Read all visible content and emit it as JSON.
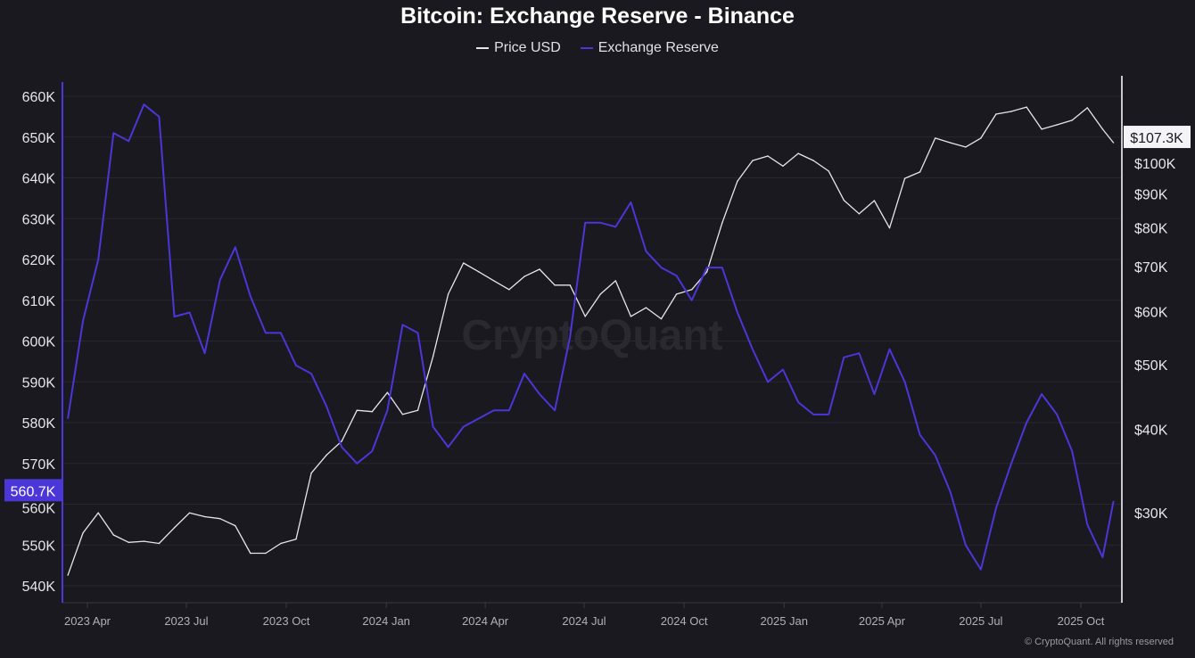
{
  "chart_data": {
    "type": "line",
    "title": "Bitcoin: Exchange Reserve - Binance",
    "legend": [
      "Price USD",
      "Exchange Reserve"
    ],
    "legend_placement": "top-center",
    "grid": true,
    "x_ticks": [
      "2023 Apr",
      "2023 Jul",
      "2023 Oct",
      "2024 Jan",
      "2024 Apr",
      "2024 Jul",
      "2024 Oct",
      "2025 Jan",
      "2025 Apr",
      "2025 Jul",
      "2025 Oct"
    ],
    "x_tick_dates": [
      "2023-04-01",
      "2023-07-01",
      "2023-10-01",
      "2024-01-01",
      "2024-04-01",
      "2024-07-01",
      "2024-10-01",
      "2025-01-01",
      "2025-04-01",
      "2025-07-01",
      "2025-10-01"
    ],
    "left_axis": {
      "ticks": [
        "660K",
        "650K",
        "640K",
        "630K",
        "620K",
        "610K",
        "600K",
        "590K",
        "580K",
        "570K",
        "560K",
        "550K",
        "540K"
      ],
      "tick_values": [
        660,
        650,
        640,
        630,
        620,
        610,
        600,
        590,
        580,
        570,
        560,
        550,
        540
      ],
      "unit": "K BTC",
      "last_value_label": "560.7K"
    },
    "right_axis": {
      "scale": "log",
      "ticks": [
        "$100K",
        "$90K",
        "$80K",
        "$70K",
        "$60K",
        "$50K",
        "$40K",
        "$30K"
      ],
      "tick_values": [
        100,
        90,
        80,
        70,
        60,
        50,
        40,
        30
      ],
      "unit": "K USD",
      "last_value_label": "$107.3K"
    },
    "dates": [
      "2023-03-14",
      "2023-03-28",
      "2023-04-11",
      "2023-04-25",
      "2023-05-09",
      "2023-05-23",
      "2023-06-06",
      "2023-06-20",
      "2023-07-04",
      "2023-07-18",
      "2023-08-01",
      "2023-08-15",
      "2023-08-29",
      "2023-09-12",
      "2023-09-26",
      "2023-10-10",
      "2023-10-24",
      "2023-11-07",
      "2023-11-21",
      "2023-12-05",
      "2023-12-19",
      "2024-01-02",
      "2024-01-16",
      "2024-01-30",
      "2024-02-13",
      "2024-02-27",
      "2024-03-12",
      "2024-03-26",
      "2024-04-09",
      "2024-04-23",
      "2024-05-07",
      "2024-05-21",
      "2024-06-04",
      "2024-06-18",
      "2024-07-02",
      "2024-07-16",
      "2024-07-30",
      "2024-08-13",
      "2024-08-27",
      "2024-09-10",
      "2024-09-24",
      "2024-10-08",
      "2024-10-22",
      "2024-11-05",
      "2024-11-19",
      "2024-12-03",
      "2024-12-17",
      "2024-12-31",
      "2025-01-14",
      "2025-01-28",
      "2025-02-11",
      "2025-02-25",
      "2025-03-11",
      "2025-03-25",
      "2025-04-08",
      "2025-04-22",
      "2025-05-06",
      "2025-05-20",
      "2025-06-03",
      "2025-06-17",
      "2025-07-01",
      "2025-07-15",
      "2025-07-29",
      "2025-08-12",
      "2025-08-26",
      "2025-09-09",
      "2025-09-23",
      "2025-10-07",
      "2025-10-21",
      "2025-10-31"
    ],
    "series": [
      {
        "name": "Price USD",
        "axis": "right",
        "color": "#e6e6ea",
        "values": [
          24.2,
          28.0,
          30.0,
          27.8,
          27.1,
          27.2,
          27.0,
          28.5,
          30.0,
          29.6,
          29.4,
          28.7,
          26.1,
          26.1,
          27.0,
          27.4,
          34.4,
          36.6,
          38.4,
          42.7,
          42.5,
          45.4,
          42.1,
          42.7,
          51.4,
          63.7,
          70.9,
          68.8,
          66.7,
          64.7,
          67.7,
          69.4,
          65.7,
          65.7,
          59.0,
          63.7,
          66.7,
          59.0,
          60.8,
          58.5,
          63.7,
          64.7,
          68.8,
          81.4,
          94.0,
          100.9,
          102.5,
          99.0,
          103.4,
          100.9,
          97.3,
          88.0,
          84.0,
          87.9,
          80.0,
          94.9,
          97.0,
          109.0,
          107.3,
          105.7,
          109.0,
          118.4,
          119.5,
          121.3,
          112.4,
          114.1,
          115.9,
          121.0,
          112.4,
          107.3
        ]
      },
      {
        "name": "Exchange Reserve",
        "axis": "left",
        "color": "#4b36d8",
        "values": [
          581,
          605,
          620,
          651,
          649,
          658,
          655,
          606,
          607,
          597,
          615,
          623,
          611,
          602,
          602,
          594,
          592,
          584,
          574,
          570,
          573,
          583,
          604,
          602,
          579,
          574,
          579,
          581,
          583,
          583,
          592,
          587,
          583,
          601,
          629,
          629,
          628,
          634,
          622,
          618,
          616,
          610,
          618,
          618,
          607,
          598,
          590,
          593,
          585,
          582,
          582,
          596,
          597,
          587,
          598,
          590,
          577,
          572,
          563,
          550,
          544,
          559,
          570,
          580,
          587,
          582,
          573,
          555,
          547,
          560.7
        ]
      }
    ]
  },
  "watermark": "CryptoQuant",
  "copyright": "© CryptoQuant. All rights reserved"
}
